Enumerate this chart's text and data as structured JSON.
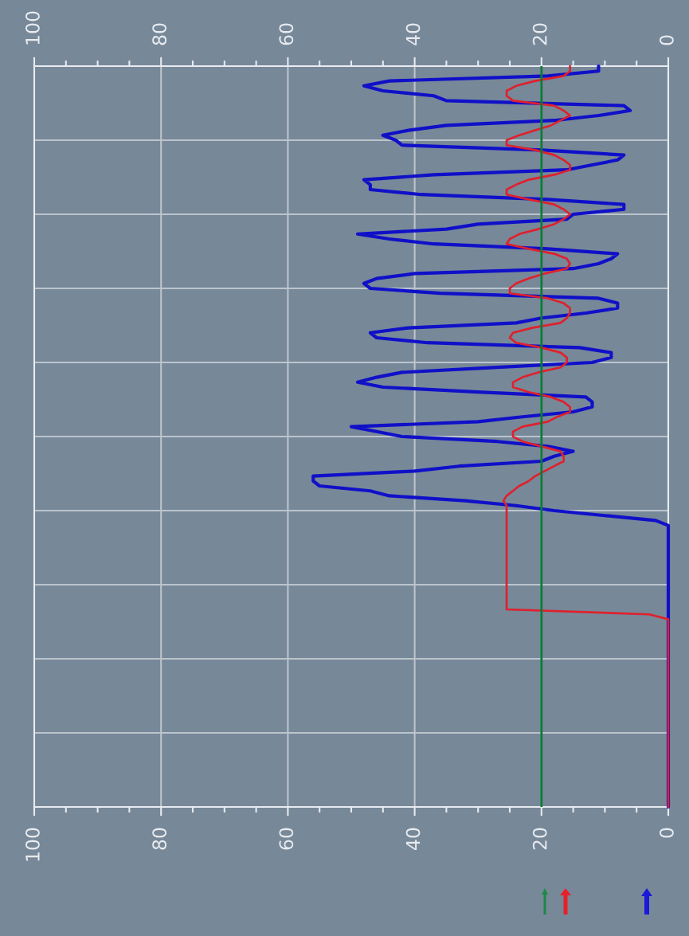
{
  "chart_data": {
    "type": "line",
    "orientation": "horizontal",
    "categories": [
      null,
      null,
      null,
      null,
      null,
      null,
      null,
      null,
      null,
      null,
      null,
      null,
      null,
      null,
      null,
      null,
      null,
      null,
      null,
      null,
      null,
      null,
      null,
      null,
      null,
      null,
      null,
      null,
      null,
      null,
      null,
      null,
      null,
      null,
      null,
      null,
      null,
      null,
      null,
      null,
      null,
      null,
      null,
      null,
      null,
      null,
      null,
      null,
      null,
      null,
      null,
      null,
      null,
      null,
      null,
      null,
      null,
      null,
      null,
      null,
      null,
      null,
      null,
      null,
      null,
      null,
      null,
      null,
      null,
      null,
      null,
      null,
      null,
      null,
      null,
      null,
      null,
      null,
      null,
      null,
      null,
      null,
      null,
      null,
      null,
      null,
      null,
      null,
      null,
      null,
      null,
      null,
      null,
      null,
      null,
      null,
      null,
      null,
      null,
      null,
      null,
      null,
      null,
      null,
      null,
      null,
      null,
      null,
      null,
      null,
      null,
      null,
      null,
      null,
      null,
      null,
      null,
      null,
      null,
      null,
      null,
      null,
      null,
      null,
      null,
      null,
      null,
      null,
      null,
      null,
      null,
      null,
      null,
      null,
      null,
      null,
      null,
      null,
      null,
      null,
      null,
      null,
      null,
      null,
      null,
      null,
      null,
      null,
      null,
      null,
      null
    ],
    "series": [
      {
        "color": "#1010c8",
        "values": [
          11,
          11,
          19,
          44,
          48,
          45,
          37,
          35,
          7,
          6,
          11,
          18,
          35,
          41,
          45,
          43,
          42,
          20,
          7,
          8,
          12,
          16,
          37,
          48,
          47,
          47,
          39,
          19,
          7,
          7,
          15,
          16,
          30,
          35,
          49,
          44,
          37,
          19,
          8,
          9,
          11,
          15,
          40,
          46,
          48,
          47,
          36,
          11,
          8,
          8,
          13,
          20,
          24,
          41,
          47,
          46,
          38,
          14,
          9,
          9,
          12,
          27,
          42,
          46,
          49,
          45,
          30,
          13,
          12,
          12,
          15,
          23,
          30,
          50,
          46,
          42,
          27,
          19,
          15,
          18,
          20,
          33,
          40,
          56,
          56,
          55,
          47,
          44,
          32,
          24,
          18,
          10,
          2,
          0,
          0,
          0,
          0,
          0,
          0,
          0,
          0,
          0,
          0,
          0,
          0,
          0,
          0,
          0,
          0,
          0,
          0,
          0,
          0,
          0,
          0,
          0,
          0,
          0,
          0,
          0,
          0,
          0,
          0,
          0,
          0,
          0,
          0,
          0,
          0,
          0,
          0,
          0,
          0,
          0,
          0,
          0,
          0,
          0,
          0,
          0,
          0,
          0,
          0,
          0,
          0,
          0,
          0,
          0,
          0,
          0,
          0
        ]
      },
      {
        "color": "#e0202c",
        "values": [
          15.5,
          15.5,
          16.5,
          21,
          24,
          25.5,
          25.5,
          24.5,
          18,
          16.5,
          15.5,
          17,
          18.5,
          21,
          23.5,
          25.5,
          25.5,
          21,
          18,
          16.5,
          15.5,
          15.5,
          18,
          22,
          24,
          25.5,
          25.5,
          22,
          18,
          16.5,
          15.5,
          16.5,
          18,
          20.5,
          23.5,
          25,
          25.5,
          22,
          18,
          16,
          15.5,
          16,
          19.5,
          22,
          24,
          25,
          25,
          19,
          16.5,
          15.5,
          15.5,
          16,
          17,
          21.5,
          24.5,
          25,
          24,
          20,
          17,
          16,
          16,
          17,
          20.5,
          23,
          24.5,
          24.5,
          22,
          18.5,
          16.5,
          15.5,
          15.5,
          17.5,
          19,
          23,
          24.5,
          24.5,
          23,
          20,
          17,
          16.5,
          16.5,
          18,
          19.5,
          21,
          22,
          23.5,
          24.5,
          25.5,
          26,
          25.5,
          25.5,
          25.5,
          25.5,
          25.5,
          25.5,
          25.5,
          25.5,
          25.5,
          25.5,
          25.5,
          25.5,
          25.5,
          25.5,
          25.5,
          25.5,
          25.5,
          25.5,
          25.5,
          25.5,
          25.5,
          25.5,
          3,
          0,
          0,
          0,
          0,
          0,
          0,
          0,
          0,
          0,
          0,
          0,
          0,
          0,
          0,
          0,
          0,
          0,
          0,
          0,
          0,
          0,
          0,
          0,
          0,
          0,
          0,
          0,
          0,
          0,
          0,
          0,
          0,
          0,
          0,
          0,
          0,
          0,
          0,
          0
        ]
      }
    ],
    "ref_lines": [
      {
        "axis": "x",
        "value": 20,
        "color": "#0b7a35"
      }
    ],
    "xlim": [
      100,
      0
    ],
    "xticks": [
      100,
      {
        "value": 95,
        "label": null
      },
      {
        "value": 90,
        "label": null
      },
      {
        "value": 85,
        "label": null
      },
      80,
      {
        "value": 75,
        "label": null
      },
      {
        "value": 70,
        "label": null
      },
      {
        "value": 65,
        "label": null
      },
      60,
      {
        "value": 55,
        "label": null
      },
      {
        "value": 50,
        "label": null
      },
      {
        "value": 45,
        "label": null
      },
      40,
      {
        "value": 35,
        "label": null
      },
      {
        "value": 30,
        "label": null
      },
      {
        "value": 25,
        "label": null
      },
      20,
      {
        "value": 15,
        "label": null
      },
      {
        "value": 10,
        "label": null
      },
      {
        "value": 5,
        "label": null
      },
      0
    ],
    "x2lim": [
      100,
      0
    ],
    "x2ticks": [
      100,
      {
        "value": 95,
        "label": null
      },
      {
        "value": 90,
        "label": null
      },
      {
        "value": 85,
        "label": null
      },
      80,
      {
        "value": 75,
        "label": null
      },
      {
        "value": 70,
        "label": null
      },
      {
        "value": 65,
        "label": null
      },
      60,
      {
        "value": 55,
        "label": null
      },
      {
        "value": 50,
        "label": null
      },
      {
        "value": 45,
        "label": null
      },
      40,
      {
        "value": 35,
        "label": null
      },
      {
        "value": 30,
        "label": null
      },
      {
        "value": 25,
        "label": null
      },
      20,
      {
        "value": 15,
        "label": null
      },
      {
        "value": 10,
        "label": null
      },
      {
        "value": 5,
        "label": null
      },
      0
    ],
    "grid": true,
    "tick_labels": "x"
  }
}
